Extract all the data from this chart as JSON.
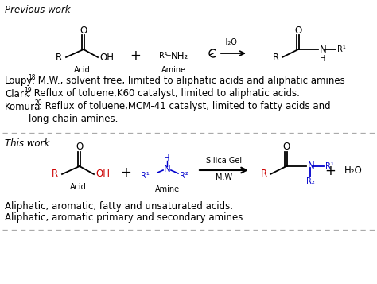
{
  "bg_color": "#ffffff",
  "title_previous": "Previous work",
  "title_this": "This work",
  "color_black": "#000000",
  "color_red": "#cc0000",
  "color_blue": "#0000cc",
  "color_gray": "#aaaaaa",
  "text_loupy_pre": "Loupy",
  "text_loupy_sup": "18",
  "text_loupy_post": ": M.W., solvent free, limited to aliphatic acids and aliphatic amines",
  "text_clark_pre": "Clark",
  "text_clark_sup": "19",
  "text_clark_post": ": Reflux of toluene,K60 catalyst, limited to aliphatic acids.",
  "text_komura_pre": "Komura",
  "text_komura_sup": "20",
  "text_komura_post": ": Reflux of toluene,MCM-41 catalyst, limited to fatty acids and",
  "text_komura2": "        long-chain amines.",
  "text_aliphatic1": "Aliphatic, aromatic, fatty and unsaturated acids.",
  "text_aliphatic2": "Aliphatic, aromatic primary and secondary amines."
}
